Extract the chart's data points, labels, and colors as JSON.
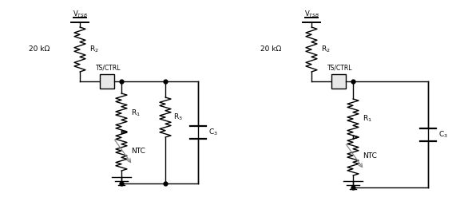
{
  "bg_color": "#ffffff",
  "line_color": "#000000",
  "dot_color": "#000000",
  "fig_width": 5.81,
  "fig_height": 2.57,
  "dpi": 100,
  "circuit1": {
    "vtsb_label": "V$_{TSB}$",
    "r2_label": "R$_{2}$",
    "r1_label": "R$_{1}$",
    "r3_label": "R$_{3}$",
    "ntc_label": "NTC",
    "c3_label": "C$_{3}$",
    "ctrl_label": "TS/CTRL",
    "res_label": "20 kΩ"
  },
  "circuit2": {
    "vtsb_label": "V$_{TSB}$",
    "r2_label": "R$_{2}$",
    "r1_label": "R$_{1}$",
    "ntc_label": "NTC",
    "c3_label": "C$_{3}$",
    "ctrl_label": "TS/CTRL",
    "res_label": "20 kΩ"
  }
}
